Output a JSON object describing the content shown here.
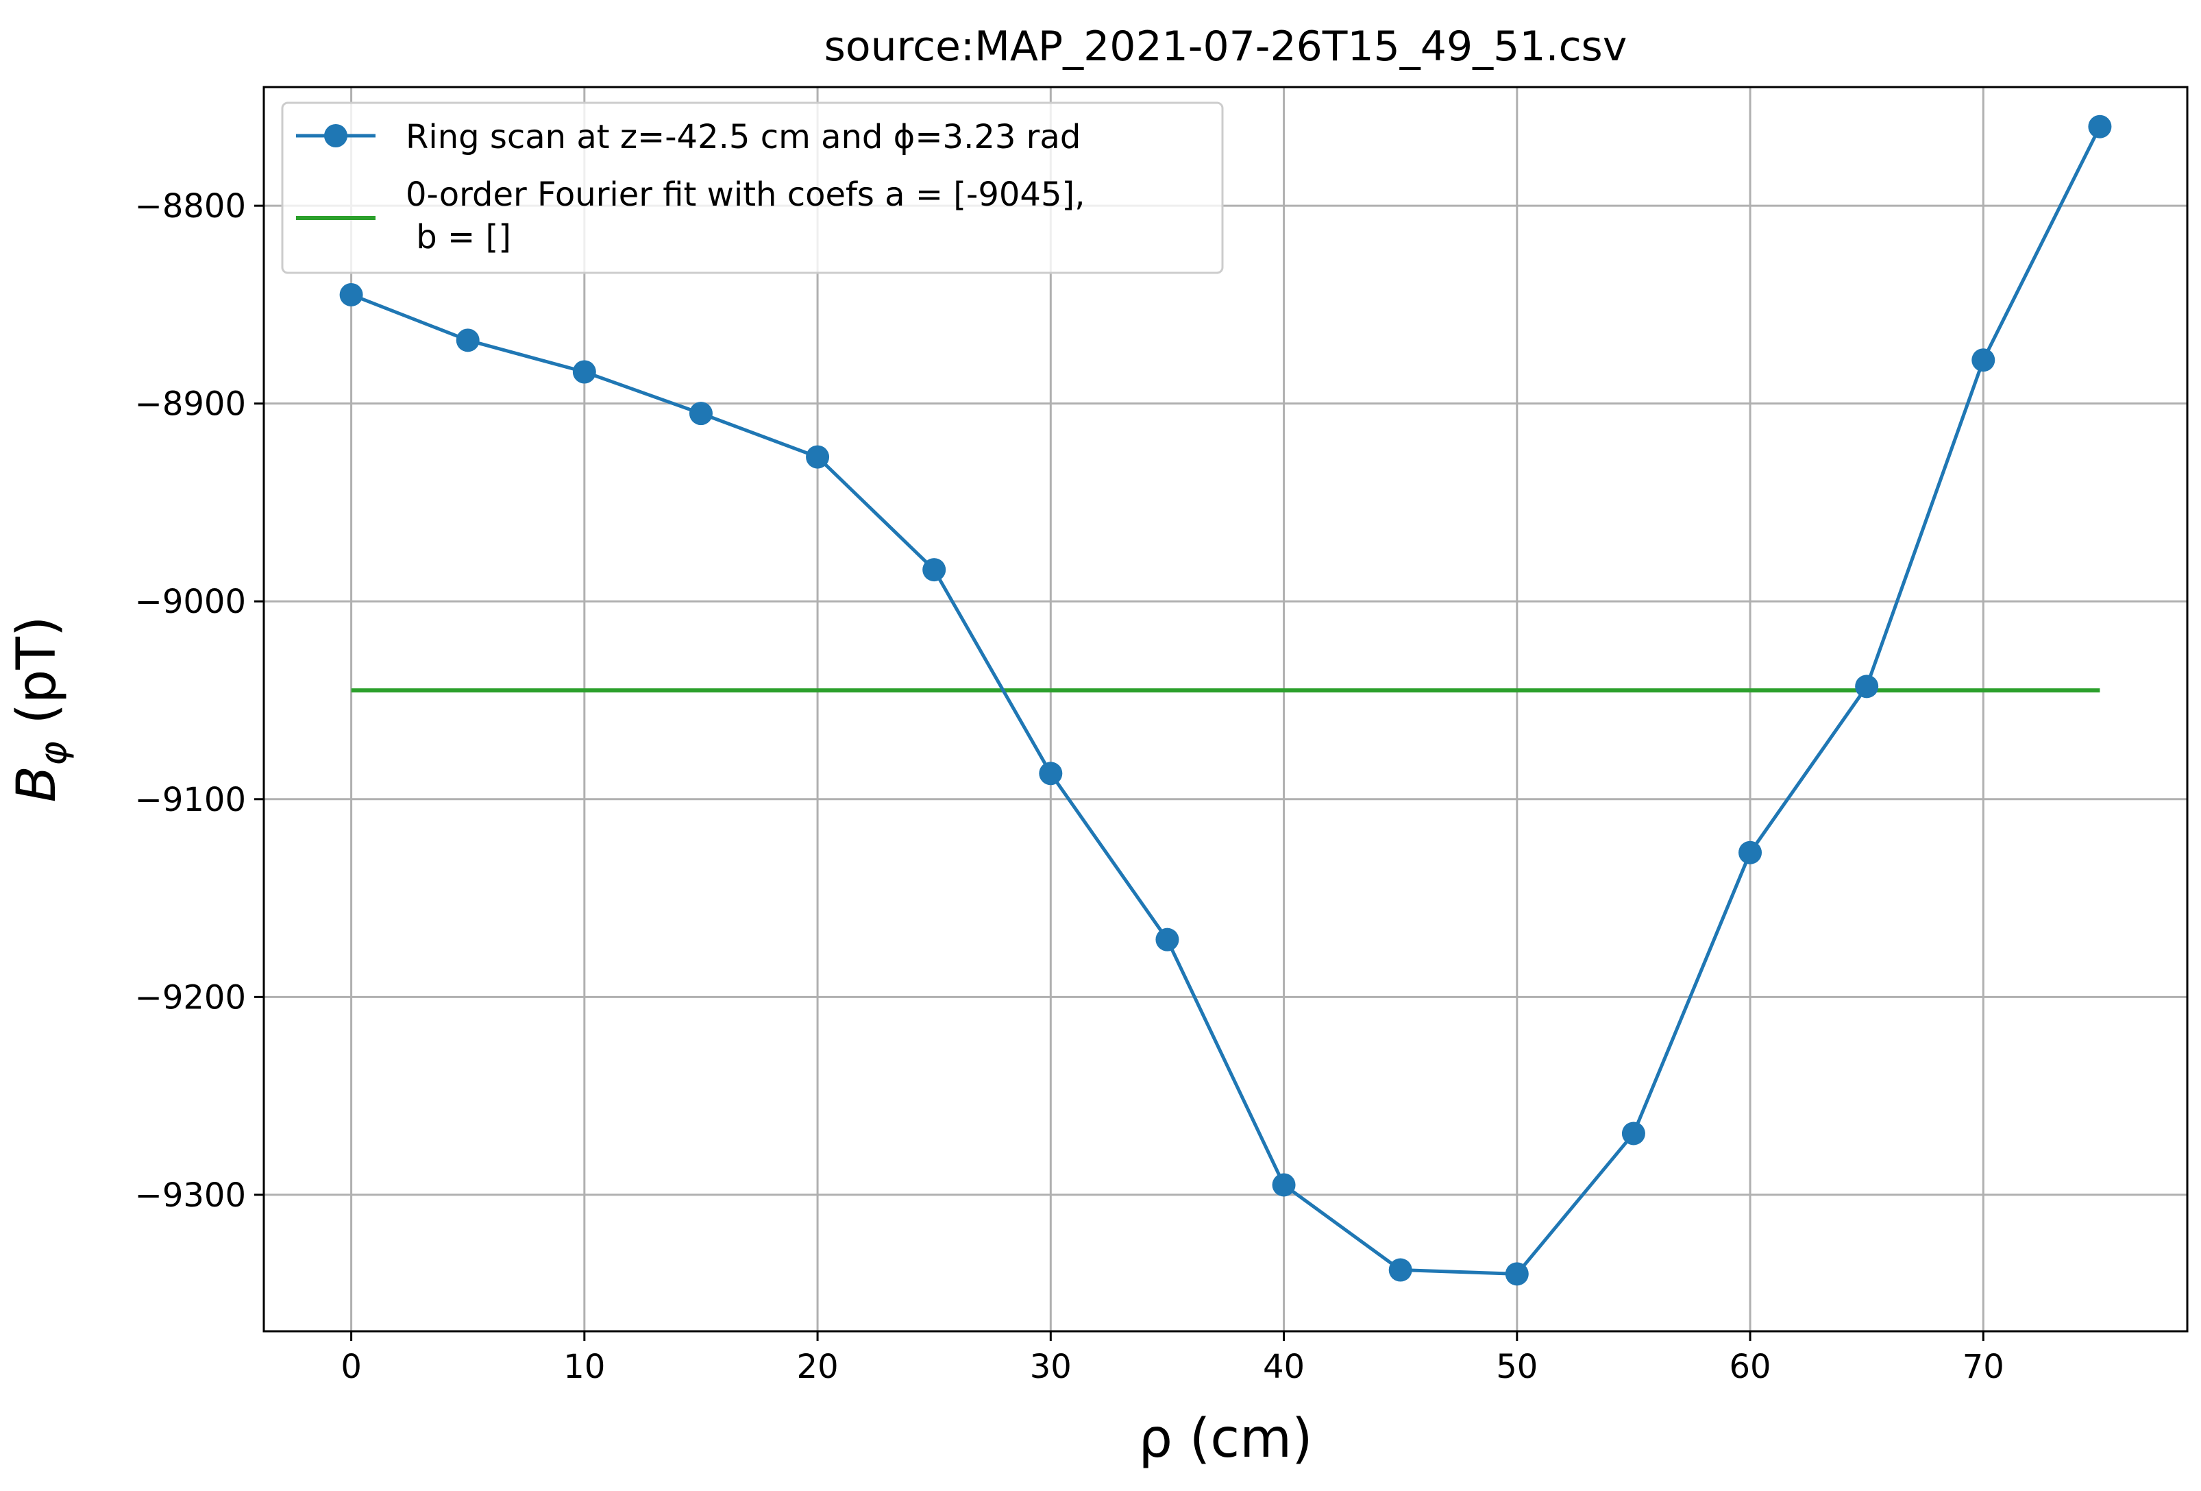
{
  "chart_data": {
    "type": "line",
    "title": "source:MAP_2021-07-26T15_49_51.csv",
    "xlabel": "ρ (cm)",
    "ylabel_main": "B",
    "ylabel_sub": "φ",
    "ylabel_unit": " (pT)",
    "xlim": [
      -3.75,
      78.75
    ],
    "ylim": [
      -9369,
      -8740
    ],
    "x_ticks": [
      0,
      10,
      20,
      30,
      40,
      50,
      60,
      70
    ],
    "x_tick_labels": [
      "0",
      "10",
      "20",
      "30",
      "40",
      "50",
      "60",
      "70"
    ],
    "y_ticks": [
      -8800,
      -8900,
      -9000,
      -9100,
      -9200,
      -9300
    ],
    "y_tick_labels": [
      "−8800",
      "−8900",
      "−9000",
      "−9100",
      "−9200",
      "−9300"
    ],
    "grid": true,
    "legend_position": "top-left",
    "series": [
      {
        "name": "Ring scan at z=-42.5 cm and ϕ=3.23 rad",
        "color": "#1f77b4",
        "marker": "circle",
        "x": [
          0,
          5,
          10,
          15,
          20,
          25,
          30,
          35,
          40,
          45,
          50,
          55,
          60,
          65,
          70,
          75
        ],
        "y": [
          -8845,
          -8868,
          -8884,
          -8905,
          -8927,
          -8984,
          -9087,
          -9171,
          -9295,
          -9338,
          -9340,
          -9269,
          -9127,
          -9043,
          -8878,
          -8760
        ]
      },
      {
        "name": "0-order Fourier fit with coefs a = [-9045],",
        "name_line2": " b = []",
        "color": "#2ca02c",
        "marker": "none",
        "x": [
          0,
          75
        ],
        "y": [
          -9045,
          -9045
        ]
      }
    ]
  }
}
